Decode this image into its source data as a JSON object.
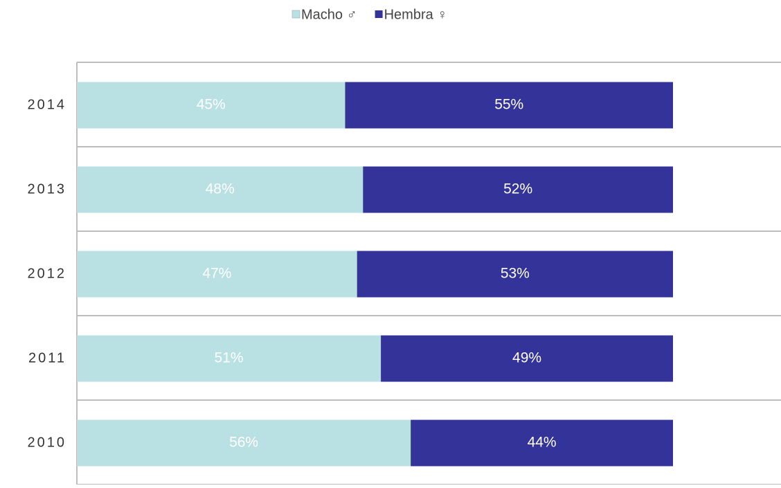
{
  "chart_data": {
    "type": "stacked-bar-horizontal",
    "categories": [
      "2014",
      "2013",
      "2012",
      "2011",
      "2010"
    ],
    "series": [
      {
        "name": "Macho ♂",
        "color": "#b9e0e3",
        "values": [
          45,
          48,
          47,
          51,
          56
        ],
        "value_labels": [
          "45%",
          "48%",
          "47%",
          "51%",
          "56%"
        ]
      },
      {
        "name": "Hembra ♀",
        "color": "#333399",
        "values": [
          55,
          52,
          53,
          49,
          44
        ],
        "value_labels": [
          "55%",
          "52%",
          "53%",
          "49%",
          "44%"
        ]
      }
    ],
    "legend": "top"
  }
}
